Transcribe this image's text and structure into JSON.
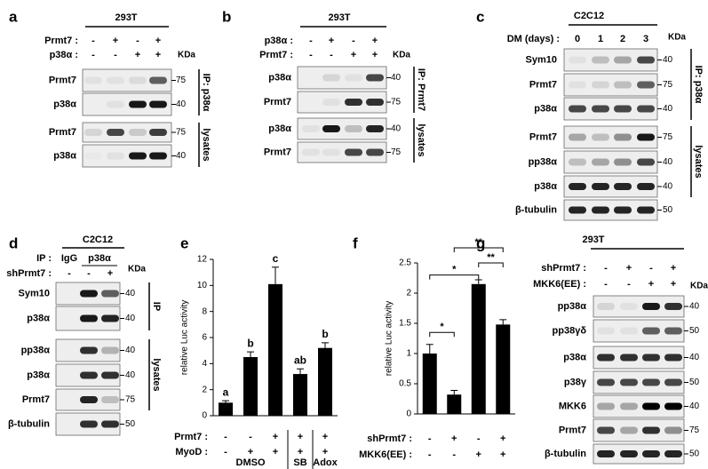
{
  "panels": [
    {
      "label": "a",
      "cell_line": "293T",
      "kda_header": "KDa",
      "conditions": [
        {
          "name": "Prmt7 :",
          "signs": [
            "-",
            "+",
            "-",
            "+"
          ]
        },
        {
          "name": "p38α :",
          "signs": [
            "-",
            "-",
            "+",
            "+"
          ]
        }
      ],
      "blots": [
        {
          "name": "Prmt7",
          "kda": 75
        },
        {
          "name": "p38α",
          "kda": 40
        },
        {
          "name": "Prmt7",
          "kda": 75
        },
        {
          "name": "p38α",
          "kda": 40
        }
      ],
      "brackets": [
        {
          "label": "IP: p38α"
        },
        {
          "label": "lysates"
        }
      ]
    },
    {
      "label": "b",
      "cell_line": "293T",
      "kda_header": "KDa",
      "conditions": [
        {
          "name": "p38α :",
          "signs": [
            "-",
            "+",
            "-",
            "+"
          ]
        },
        {
          "name": "Prmt7 :",
          "signs": [
            "-",
            "-",
            "+",
            "+"
          ]
        }
      ],
      "blots": [
        {
          "name": "p38α",
          "kda": 40
        },
        {
          "name": "Prmt7",
          "kda": 75
        },
        {
          "name": "p38α",
          "kda": 40
        },
        {
          "name": "Prmt7",
          "kda": 75
        }
      ],
      "brackets": [
        {
          "label": "IP: Prmt7"
        },
        {
          "label": "lysates"
        }
      ]
    },
    {
      "label": "c",
      "cell_line": "C2C12",
      "kda_header": "KDa",
      "conditions": [
        {
          "name": "DM (days) :",
          "signs": [
            "0",
            "1",
            "2",
            "3"
          ]
        }
      ],
      "blots": [
        {
          "name": "Sym10",
          "kda": 40
        },
        {
          "name": "Prmt7",
          "kda": 75
        },
        {
          "name": "p38α",
          "kda": 40
        },
        {
          "name": "Prmt7",
          "kda": 75
        },
        {
          "name": "pp38α",
          "kda": 40
        },
        {
          "name": "p38α",
          "kda": 40
        },
        {
          "name": "β-tubulin",
          "kda": 50
        }
      ],
      "brackets": [
        {
          "label": "IP: p38α"
        },
        {
          "label": "lysates"
        }
      ]
    },
    {
      "label": "d",
      "cell_line": "C2C12",
      "kda_header": "KDa",
      "conditions": [
        {
          "name": "IP :",
          "signs": [
            "IgG",
            "p38α"
          ]
        },
        {
          "name": "shPrmt7 :",
          "signs": [
            "-",
            "-",
            "+"
          ]
        }
      ],
      "blots": [
        {
          "name": "Sym10",
          "kda": 40
        },
        {
          "name": "p38α",
          "kda": 40
        },
        {
          "name": "pp38α",
          "kda": 40
        },
        {
          "name": "p38α",
          "kda": 40
        },
        {
          "name": "Prmt7",
          "kda": 75
        },
        {
          "name": "β-tubulin",
          "kda": 50
        }
      ],
      "brackets": [
        {
          "label": "IP"
        },
        {
          "label": "lysates"
        }
      ]
    },
    {
      "label": "g",
      "cell_line": "293T",
      "kda_header": "KDa",
      "conditions": [
        {
          "name": "shPrmt7 :",
          "signs": [
            "-",
            "+",
            "-",
            "+"
          ]
        },
        {
          "name": "MKK6(EE) :",
          "signs": [
            "-",
            "-",
            "+",
            "+"
          ]
        }
      ],
      "blots": [
        {
          "name": "pp38α",
          "kda": 40
        },
        {
          "name": "pp38γδ",
          "kda": 50
        },
        {
          "name": "p38α",
          "kda": 40
        },
        {
          "name": "p38γ",
          "kda": 50
        },
        {
          "name": "MKK6",
          "kda": 40
        },
        {
          "name": "Prmt7",
          "kda": 75
        },
        {
          "name": "β-tubulin",
          "kda": 50
        }
      ],
      "brackets": []
    }
  ],
  "chart_data": [
    {
      "type": "bar",
      "label": "e",
      "ylabel": "relative Luc activity",
      "categories": [
        null,
        null,
        null,
        null,
        null
      ],
      "values": [
        1.0,
        4.5,
        10.1,
        3.2,
        5.2
      ],
      "errors": [
        0.15,
        0.4,
        1.3,
        0.4,
        0.4
      ],
      "annotations": [
        "a",
        "b",
        "c",
        "ab",
        "b"
      ],
      "color": "#000000",
      "ylim": [
        0,
        12
      ],
      "yticks": [
        0,
        2,
        4,
        6,
        8,
        10,
        12
      ],
      "conditions": [
        {
          "name": "Prmt7 :",
          "signs": [
            "-",
            "-",
            "+",
            "+",
            "+"
          ]
        },
        {
          "name": "MyoD :",
          "signs": [
            "-",
            "+",
            "+",
            "+",
            "+"
          ]
        }
      ],
      "groups": [
        {
          "label": "DMSO",
          "span": [
            0,
            2
          ]
        },
        {
          "label": "SB",
          "span": [
            3,
            3
          ]
        },
        {
          "label": "Adox",
          "span": [
            4,
            4
          ]
        }
      ]
    },
    {
      "type": "bar",
      "label": "f",
      "ylabel": "relative Luc activity",
      "categories": [
        null,
        null,
        null,
        null
      ],
      "values": [
        1.0,
        0.32,
        2.15,
        1.48
      ],
      "errors": [
        0.15,
        0.07,
        0.07,
        0.08
      ],
      "color": "#000000",
      "ylim": [
        0,
        2.5
      ],
      "yticks": [
        0,
        0.5,
        1,
        1.5,
        2,
        2.5
      ],
      "conditions": [
        {
          "name": "shPrmt7 :",
          "signs": [
            "-",
            "+",
            "-",
            "+"
          ]
        },
        {
          "name": "MKK6(EE) :",
          "signs": [
            "-",
            "-",
            "+",
            "+"
          ]
        }
      ],
      "significance": [
        {
          "label": "*",
          "between": [
            0,
            1
          ]
        },
        {
          "label": "*",
          "between": [
            0,
            2
          ]
        },
        {
          "label": "**",
          "between": [
            2,
            3
          ]
        },
        {
          "label": "**",
          "between": [
            1,
            3
          ]
        }
      ]
    }
  ]
}
